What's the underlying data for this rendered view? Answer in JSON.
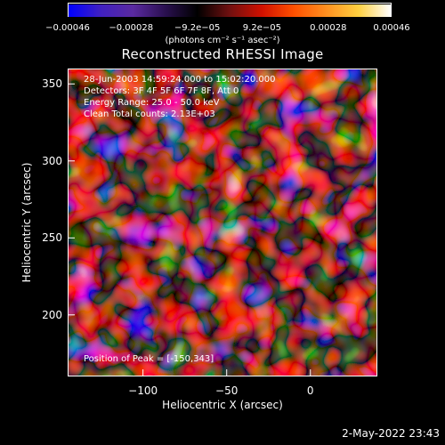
{
  "colorbar": {
    "ticks": [
      "−0.00046",
      "−0.00028",
      "−9.2e−05",
      "9.2e−05",
      "0.00028",
      "0.00046"
    ],
    "tick_values": [
      -0.00046,
      -0.00028,
      -9.2e-05,
      9.2e-05,
      0.00028,
      0.00046
    ],
    "units": "(photons cm⁻² s⁻¹ asec⁻²)",
    "colors": [
      "#0000ff",
      "#4020c0",
      "#5a2aa0",
      "#2a1050",
      "#000000",
      "#701010",
      "#d01000",
      "#ff5000",
      "#ff9020",
      "#ffd040",
      "#ffffff"
    ]
  },
  "chart_data": {
    "type": "heatmap",
    "title": "Reconstructed RHESSI Image",
    "xlabel": "Heliocentric X (arcsec)",
    "ylabel": "Heliocentric Y (arcsec)",
    "xlim": [
      -145,
      40
    ],
    "ylim": [
      160,
      360
    ],
    "x_ticks": [
      -100,
      -50,
      0
    ],
    "y_ticks": [
      200,
      250,
      300,
      350
    ],
    "value_range": [
      -0.00046,
      0.00046
    ],
    "peak_position": [
      -150,
      343
    ],
    "annotations": [
      "28-Jun-2003 14:59:24.000 to 15:02:20.000",
      "Detectors: 3F 4F 5F 6F 7F 8F, Att 0",
      "Energy Range: 25.0 - 50.0 keV",
      "Clean    Total counts: 2.13E+03",
      "Position of Peak = [-150,343]"
    ]
  },
  "footer": {
    "timestamp": "2-May-2022 23:43"
  }
}
